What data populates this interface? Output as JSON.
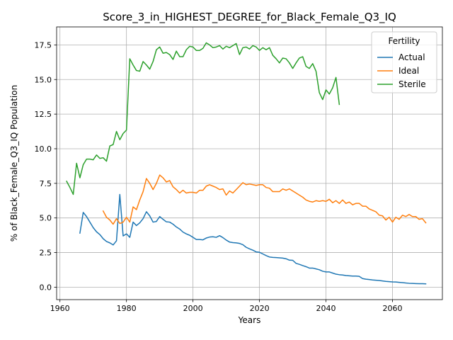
{
  "chart_data": {
    "type": "line",
    "title": "Score_3_in_HIGHEST_DEGREE_for_Black_Female_Q3_IQ",
    "xlabel": "Years",
    "ylabel": "% of Black_Female_Q3_IQ Population",
    "xlim": [
      1959,
      2075
    ],
    "ylim": [
      -0.9,
      18.8
    ],
    "x_ticks": [
      1960,
      1980,
      2000,
      2020,
      2040,
      2060
    ],
    "x_tick_labels": [
      "1960",
      "1980",
      "2000",
      "2020",
      "2040",
      "2060"
    ],
    "y_ticks": [
      0,
      2.5,
      5,
      7.5,
      10,
      12.5,
      15,
      17.5
    ],
    "y_tick_labels": [
      "0.0",
      "2.5",
      "5.0",
      "7.5",
      "10.0",
      "12.5",
      "15.0",
      "17.5"
    ],
    "grid": true,
    "legend": {
      "title": "Fertility",
      "location": "top-right"
    },
    "series": [
      {
        "name": "Actual",
        "color": "#1f77b4",
        "x": [
          1966,
          1967,
          1968,
          1969,
          1970,
          1971,
          1972,
          1973,
          1974,
          1975,
          1976,
          1977,
          1978,
          1979,
          1980,
          1981,
          1982,
          1983,
          1984,
          1985,
          1986,
          1987,
          1988,
          1989,
          1990,
          1991,
          1992,
          1993,
          1994,
          1995,
          1996,
          1997,
          1998,
          1999,
          2000,
          2001,
          2002,
          2003,
          2004,
          2005,
          2006,
          2007,
          2008,
          2009,
          2010,
          2011,
          2012,
          2013,
          2014,
          2015,
          2016,
          2017,
          2018,
          2019,
          2020,
          2021,
          2022,
          2023,
          2024,
          2025,
          2026,
          2027,
          2028,
          2029,
          2030,
          2031,
          2032,
          2033,
          2034,
          2035,
          2036,
          2037,
          2038,
          2039,
          2040,
          2041,
          2042,
          2043,
          2044,
          2045,
          2046,
          2047,
          2048,
          2049,
          2050,
          2051,
          2052,
          2053,
          2054,
          2055,
          2056,
          2057,
          2058,
          2059,
          2060,
          2061,
          2062,
          2063,
          2064,
          2065,
          2066,
          2067,
          2068,
          2069,
          2070
        ],
        "y": [
          3.9,
          5.4,
          5.1,
          4.7,
          4.3,
          4.0,
          3.8,
          3.5,
          3.3,
          3.2,
          3.05,
          3.35,
          6.7,
          3.7,
          3.85,
          3.6,
          4.7,
          4.45,
          4.65,
          4.95,
          5.45,
          5.15,
          4.7,
          4.75,
          5.1,
          4.9,
          4.72,
          4.7,
          4.55,
          4.35,
          4.2,
          3.98,
          3.85,
          3.75,
          3.6,
          3.44,
          3.44,
          3.42,
          3.55,
          3.62,
          3.64,
          3.6,
          3.72,
          3.58,
          3.4,
          3.26,
          3.22,
          3.2,
          3.16,
          3.07,
          2.88,
          2.77,
          2.67,
          2.55,
          2.52,
          2.4,
          2.28,
          2.18,
          2.15,
          2.14,
          2.12,
          2.1,
          2.05,
          1.95,
          1.94,
          1.72,
          1.65,
          1.56,
          1.48,
          1.38,
          1.38,
          1.32,
          1.26,
          1.15,
          1.1,
          1.1,
          1.02,
          0.94,
          0.9,
          0.88,
          0.84,
          0.82,
          0.8,
          0.8,
          0.78,
          0.62,
          0.58,
          0.55,
          0.52,
          0.5,
          0.48,
          0.45,
          0.42,
          0.4,
          0.38,
          0.37,
          0.35,
          0.33,
          0.3,
          0.28,
          0.27,
          0.26,
          0.25,
          0.25,
          0.24
        ]
      },
      {
        "name": "Ideal",
        "color": "#ff7f0e",
        "x": [
          1973,
          1974,
          1975,
          1976,
          1977,
          1978,
          1979,
          1980,
          1981,
          1982,
          1983,
          1984,
          1985,
          1986,
          1987,
          1988,
          1989,
          1990,
          1991,
          1992,
          1993,
          1994,
          1995,
          1996,
          1997,
          1998,
          1999,
          2000,
          2001,
          2002,
          2003,
          2004,
          2005,
          2006,
          2007,
          2008,
          2009,
          2010,
          2011,
          2012,
          2013,
          2014,
          2015,
          2016,
          2017,
          2018,
          2019,
          2020,
          2021,
          2022,
          2023,
          2024,
          2025,
          2026,
          2027,
          2028,
          2029,
          2030,
          2031,
          2032,
          2033,
          2034,
          2035,
          2036,
          2037,
          2038,
          2039,
          2040,
          2041,
          2042,
          2043,
          2044,
          2045,
          2046,
          2047,
          2048,
          2049,
          2050,
          2051,
          2052,
          2053,
          2054,
          2055,
          2056,
          2057,
          2058,
          2059,
          2060,
          2061,
          2062,
          2063,
          2064,
          2065,
          2066,
          2067,
          2068,
          2069,
          2070
        ],
        "y": [
          5.5,
          5.05,
          4.85,
          4.55,
          4.95,
          4.6,
          4.7,
          5.05,
          4.7,
          5.8,
          5.6,
          6.3,
          6.9,
          7.85,
          7.5,
          7.05,
          7.5,
          8.1,
          7.9,
          7.6,
          7.7,
          7.25,
          7.05,
          6.8,
          7.0,
          6.8,
          6.85,
          6.85,
          6.8,
          7.0,
          7.0,
          7.3,
          7.4,
          7.3,
          7.2,
          7.05,
          7.1,
          6.65,
          6.95,
          6.8,
          7.05,
          7.3,
          7.55,
          7.4,
          7.45,
          7.4,
          7.35,
          7.4,
          7.4,
          7.2,
          7.15,
          6.9,
          6.9,
          6.9,
          7.1,
          7.0,
          7.1,
          6.95,
          6.8,
          6.65,
          6.5,
          6.3,
          6.2,
          6.15,
          6.25,
          6.2,
          6.25,
          6.2,
          6.35,
          6.1,
          6.25,
          6.05,
          6.3,
          6.05,
          6.15,
          5.95,
          6.05,
          6.05,
          5.85,
          5.85,
          5.65,
          5.55,
          5.45,
          5.2,
          5.15,
          4.85,
          5.05,
          4.7,
          5.05,
          4.9,
          5.2,
          5.1,
          5.25,
          5.1,
          5.1,
          4.9,
          4.95,
          4.65
        ]
      },
      {
        "name": "Sterile",
        "color": "#2ca02c",
        "x": [
          1962,
          1963,
          1964,
          1965,
          1966,
          1967,
          1968,
          1969,
          1970,
          1971,
          1972,
          1973,
          1974,
          1975,
          1976,
          1977,
          1978,
          1979,
          1980,
          1981,
          1982,
          1983,
          1984,
          1985,
          1986,
          1987,
          1988,
          1989,
          1990,
          1991,
          1992,
          1993,
          1994,
          1995,
          1996,
          1997,
          1998,
          1999,
          2000,
          2001,
          2002,
          2003,
          2004,
          2005,
          2006,
          2007,
          2008,
          2009,
          2010,
          2011,
          2012,
          2013,
          2014,
          2015,
          2016,
          2017,
          2018,
          2019,
          2020,
          2021,
          2022,
          2023,
          2024,
          2025,
          2026,
          2027,
          2028,
          2029,
          2030,
          2031,
          2032,
          2033,
          2034,
          2035,
          2036,
          2037,
          2038,
          2039,
          2040,
          2041,
          2042,
          2043,
          2044
        ],
        "y": [
          7.65,
          7.2,
          6.7,
          8.95,
          7.9,
          8.85,
          9.25,
          9.25,
          9.2,
          9.55,
          9.3,
          9.35,
          9.1,
          10.2,
          10.3,
          11.25,
          10.65,
          11.1,
          11.35,
          16.5,
          16.05,
          15.65,
          15.6,
          16.3,
          16.05,
          15.75,
          16.3,
          17.15,
          17.35,
          16.9,
          16.95,
          16.8,
          16.45,
          17.05,
          16.65,
          16.65,
          17.15,
          17.4,
          17.35,
          17.1,
          17.1,
          17.25,
          17.65,
          17.5,
          17.3,
          17.35,
          17.45,
          17.2,
          17.4,
          17.3,
          17.45,
          17.6,
          16.8,
          17.3,
          17.35,
          17.2,
          17.45,
          17.35,
          17.1,
          17.3,
          17.15,
          17.3,
          16.75,
          16.5,
          16.2,
          16.55,
          16.5,
          16.2,
          15.8,
          16.2,
          16.55,
          16.65,
          15.95,
          15.8,
          16.15,
          15.6,
          14.05,
          13.55,
          14.25,
          13.95,
          14.4,
          15.15,
          13.2
        ]
      }
    ]
  }
}
